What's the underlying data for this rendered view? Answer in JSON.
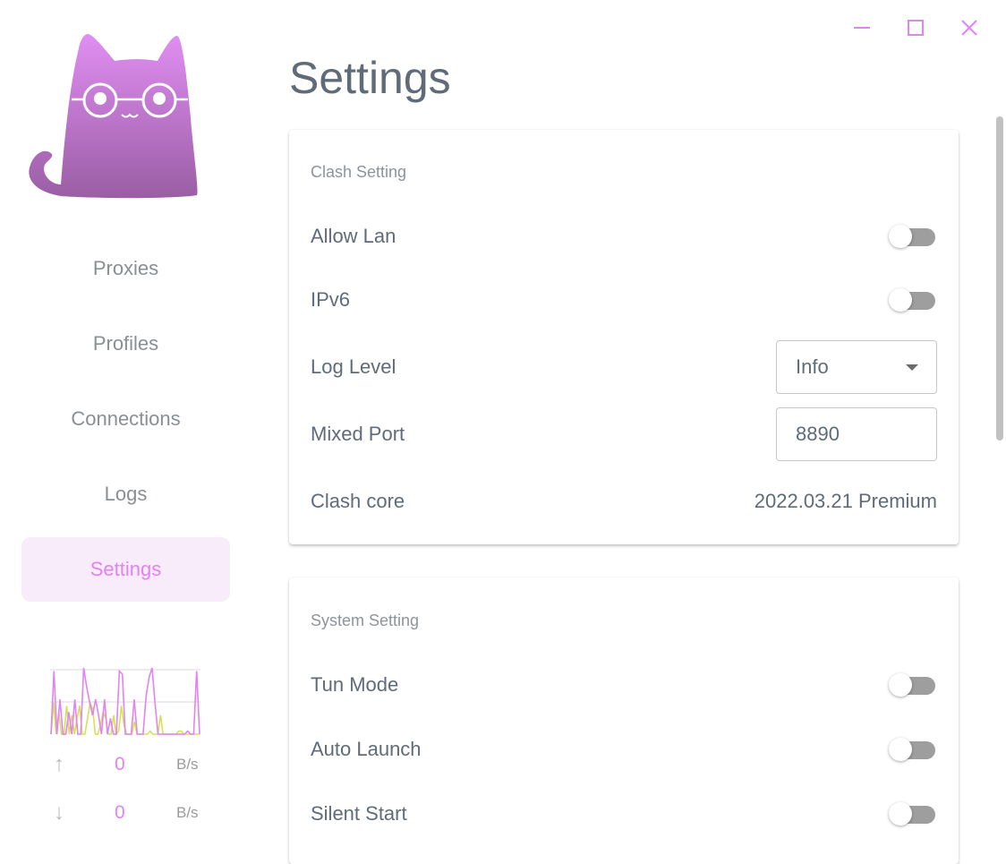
{
  "window": {
    "minimize_icon": "minimize-icon",
    "maximize_icon": "maximize-icon",
    "close_icon": "close-icon"
  },
  "sidebar": {
    "items": [
      {
        "label": "Proxies"
      },
      {
        "label": "Profiles"
      },
      {
        "label": "Connections"
      },
      {
        "label": "Logs"
      },
      {
        "label": "Settings",
        "active": true
      }
    ],
    "traffic": {
      "upload": {
        "value": "0",
        "unit": "B/s"
      },
      "download": {
        "value": "0",
        "unit": "B/s"
      },
      "upload_series": [
        0,
        10,
        0,
        7,
        0,
        0,
        9,
        0,
        6,
        0,
        5,
        9,
        0,
        0,
        5,
        10,
        8,
        0,
        0,
        3,
        7,
        5,
        0,
        0,
        6,
        0,
        1,
        9,
        3,
        0,
        0,
        0,
        4,
        0,
        0,
        0,
        0,
        0,
        1,
        0,
        0,
        0,
        6,
        0,
        0,
        0,
        0,
        0,
        0,
        1,
        1,
        0,
        0,
        0,
        0,
        0,
        0,
        0
      ],
      "download_series": [
        0,
        20,
        0,
        11,
        0,
        0,
        7,
        0,
        11,
        0,
        0,
        21,
        15,
        10,
        6,
        11,
        6,
        0,
        11,
        0,
        5,
        0,
        0,
        20,
        19,
        0,
        0,
        0,
        11,
        0,
        0,
        0,
        12,
        18,
        21,
        10,
        0,
        0,
        0,
        0,
        0,
        0,
        0,
        0,
        0,
        0,
        1,
        0,
        0,
        20,
        0
      ],
      "colors": {
        "upload": "#d4e157",
        "download": "#e183f0"
      }
    }
  },
  "main": {
    "title": "Settings",
    "clash": {
      "header": "Clash Setting",
      "allow_lan": {
        "label": "Allow Lan",
        "on": false
      },
      "ipv6": {
        "label": "IPv6",
        "on": false
      },
      "log_level": {
        "label": "Log Level",
        "value": "Info"
      },
      "mixed_port": {
        "label": "Mixed Port",
        "value": "8890"
      },
      "core": {
        "label": "Clash core",
        "value": "2022.03.21 Premium"
      }
    },
    "system": {
      "header": "System Setting",
      "tun": {
        "label": "Tun Mode",
        "on": false
      },
      "auto_launch": {
        "label": "Auto Launch",
        "on": false
      },
      "silent_start": {
        "label": "Silent Start",
        "on": false
      }
    }
  },
  "colors": {
    "accent": "#e183f0",
    "active_bg": "#f8ebfa",
    "text": "#5f6b78"
  }
}
